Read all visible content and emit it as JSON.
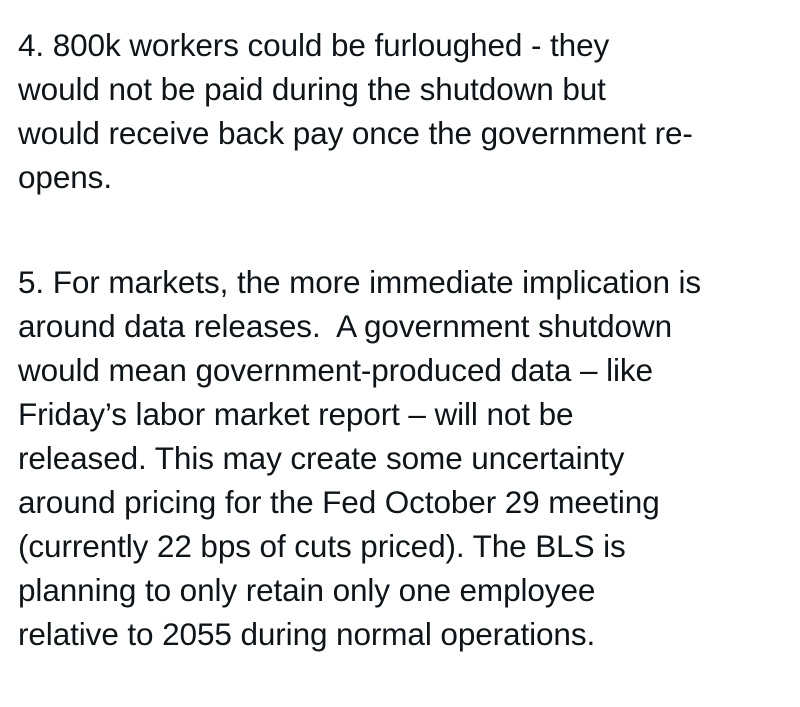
{
  "paragraphs": [
    {
      "lines": [
        "4. 800k workers could be furloughed - they",
        "would not be paid during the shutdown but",
        "would receive back pay once the government re-",
        "opens."
      ]
    },
    {
      "lines": [
        "5. For markets, the more immediate implication is",
        "around data releases.  A government shutdown",
        "would mean government-produced data – like",
        "Friday’s labor market report – will not be",
        "released. This may create some uncertainty",
        "around pricing for the Fed October 29 meeting",
        "(currently 22 bps of cuts priced). The BLS is",
        "planning to only retain only one employee",
        "relative to 2055 during normal operations."
      ]
    }
  ]
}
